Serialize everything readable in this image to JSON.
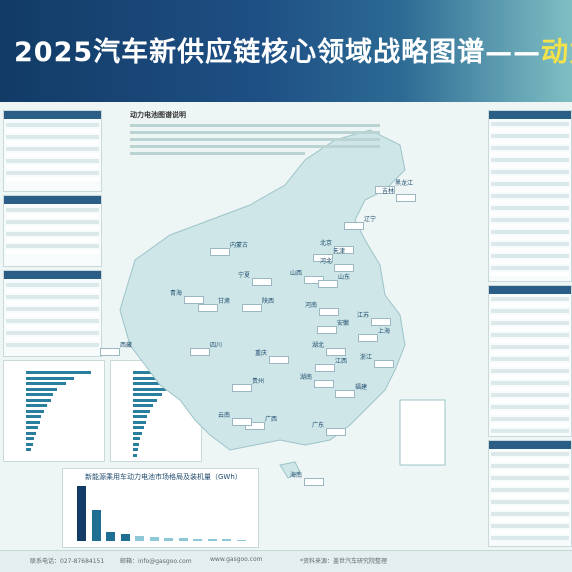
{
  "header": {
    "title_main": "2025汽车新供应链核心领域战略图谱",
    "title_dash": "——",
    "title_highlight": "动力电"
  },
  "legend": {
    "title": "动力电池图谱说明"
  },
  "provinces": [
    {
      "name": "黑龙江"
    },
    {
      "name": "吉林"
    },
    {
      "name": "辽宁"
    },
    {
      "name": "北京"
    },
    {
      "name": "天津"
    },
    {
      "name": "河北"
    },
    {
      "name": "内蒙古"
    },
    {
      "name": "山西"
    },
    {
      "name": "山东"
    },
    {
      "name": "河南"
    },
    {
      "name": "陕西"
    },
    {
      "name": "宁夏"
    },
    {
      "name": "甘肃"
    },
    {
      "name": "青海"
    },
    {
      "name": "四川"
    },
    {
      "name": "湖北"
    },
    {
      "name": "安徽"
    },
    {
      "name": "江苏"
    },
    {
      "name": "上海"
    },
    {
      "name": "浙江"
    },
    {
      "name": "江西"
    },
    {
      "name": "湖南"
    },
    {
      "name": "贵州"
    },
    {
      "name": "重庆"
    },
    {
      "name": "福建"
    },
    {
      "name": "广东"
    },
    {
      "name": "广西"
    },
    {
      "name": "云南"
    },
    {
      "name": "西藏"
    },
    {
      "name": "海南"
    }
  ],
  "bottom_chart": {
    "title": "新能源乘用车动力电池市场格局及装机量（GWh）",
    "type": "bar",
    "values": [
      105,
      60,
      18,
      14,
      10,
      8,
      6,
      5,
      4,
      3,
      3,
      2
    ]
  },
  "left_chart_1": {
    "values": [
      95,
      70,
      58,
      45,
      40,
      36,
      30,
      26,
      22,
      20,
      17,
      15,
      12,
      10,
      8
    ]
  },
  "left_chart_2": {
    "values": [
      92,
      80,
      66,
      55,
      48,
      40,
      34,
      29,
      24,
      21,
      18,
      15,
      12,
      10,
      8,
      6
    ]
  },
  "footer": {
    "phone": "联系电话：027-87684151",
    "email": "邮箱：info@gasgoo.com",
    "web": "www.gasgoo.com",
    "note": "*资料来源：盖世汽车研究院整理"
  },
  "colors": {
    "header_dark": "#123b66",
    "accent": "#2a7f9e",
    "highlight": "#f4e24a",
    "map_land": "#cfe6e8"
  }
}
